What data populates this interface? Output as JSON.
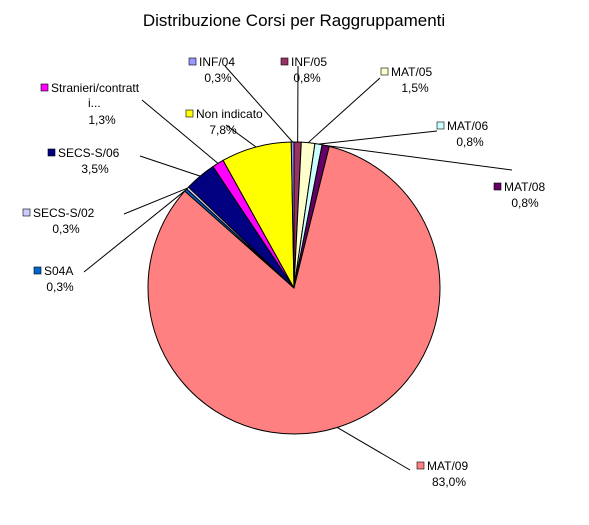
{
  "chart_data": {
    "type": "pie",
    "title": "Distribuzione Corsi per Raggruppamenti",
    "slices": [
      {
        "name": "INF/05",
        "value": 0.8,
        "label": "0,8%",
        "color": "#993366"
      },
      {
        "name": "MAT/05",
        "value": 1.5,
        "label": "1,5%",
        "color": "#FFFFCC"
      },
      {
        "name": "MAT/06",
        "value": 0.8,
        "label": "0,8%",
        "color": "#CCFFFF"
      },
      {
        "name": "MAT/08",
        "value": 0.8,
        "label": "0,8%",
        "color": "#660066"
      },
      {
        "name": "MAT/09",
        "value": 83.0,
        "label": "83,0%",
        "color": "#FF8080"
      },
      {
        "name": "S04A",
        "value": 0.3,
        "label": "0,3%",
        "color": "#0066CC"
      },
      {
        "name": "SECS-S/02",
        "value": 0.3,
        "label": "0,3%",
        "color": "#CCCCFF"
      },
      {
        "name": "SECS-S/06",
        "value": 3.5,
        "label": "3,5%",
        "color": "#000080"
      },
      {
        "name": "Stranieri/contratt i...",
        "value": 1.3,
        "label": "1,3%",
        "color": "#FF00FF"
      },
      {
        "name": "Non indicato",
        "value": 7.8,
        "label": "7,8%",
        "color": "#FFFF00"
      },
      {
        "name": "INF/04",
        "value": 0.3,
        "label": "0,3%",
        "color": "#9999FF"
      }
    ]
  }
}
